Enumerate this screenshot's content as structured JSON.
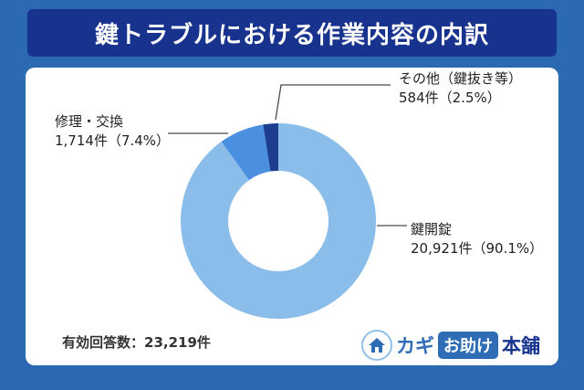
{
  "header": {
    "title": "鍵トラブルにおける作業内容の内訳"
  },
  "chart_data": {
    "type": "pie",
    "donut": true,
    "title": "鍵トラブルにおける作業内容の内訳",
    "start_angle_deg": -90,
    "direction": "clockwise",
    "total": 23219,
    "total_label": "有効回答数：23,219件",
    "legend_position": "callouts",
    "segments": [
      {
        "id": "kaijo",
        "label": "鍵開錠",
        "count": 20921,
        "percent": 90.1,
        "value_text": "20,921件（90.1%）",
        "color": "#8abde9"
      },
      {
        "id": "shuri",
        "label": "修理・交換",
        "count": 1714,
        "percent": 7.4,
        "value_text": "1,714件（7.4%）",
        "color": "#4a8fe0"
      },
      {
        "id": "sonota",
        "label": "その他（鍵抜き等）",
        "count": 584,
        "percent": 2.5,
        "value_text": "584件（2.5%）",
        "color": "#1d3e8f"
      }
    ]
  },
  "footer": {
    "valid_responses": "有効回答数：23,219件"
  },
  "logo": {
    "kagi": "カギ",
    "otasuke": "お助け",
    "honpo": "本舗"
  },
  "colors": {
    "background": "#2b6ab3",
    "banner": "#17338e",
    "card": "#ffffff",
    "leader_line": "#4a4a4a",
    "text": "#222222"
  }
}
